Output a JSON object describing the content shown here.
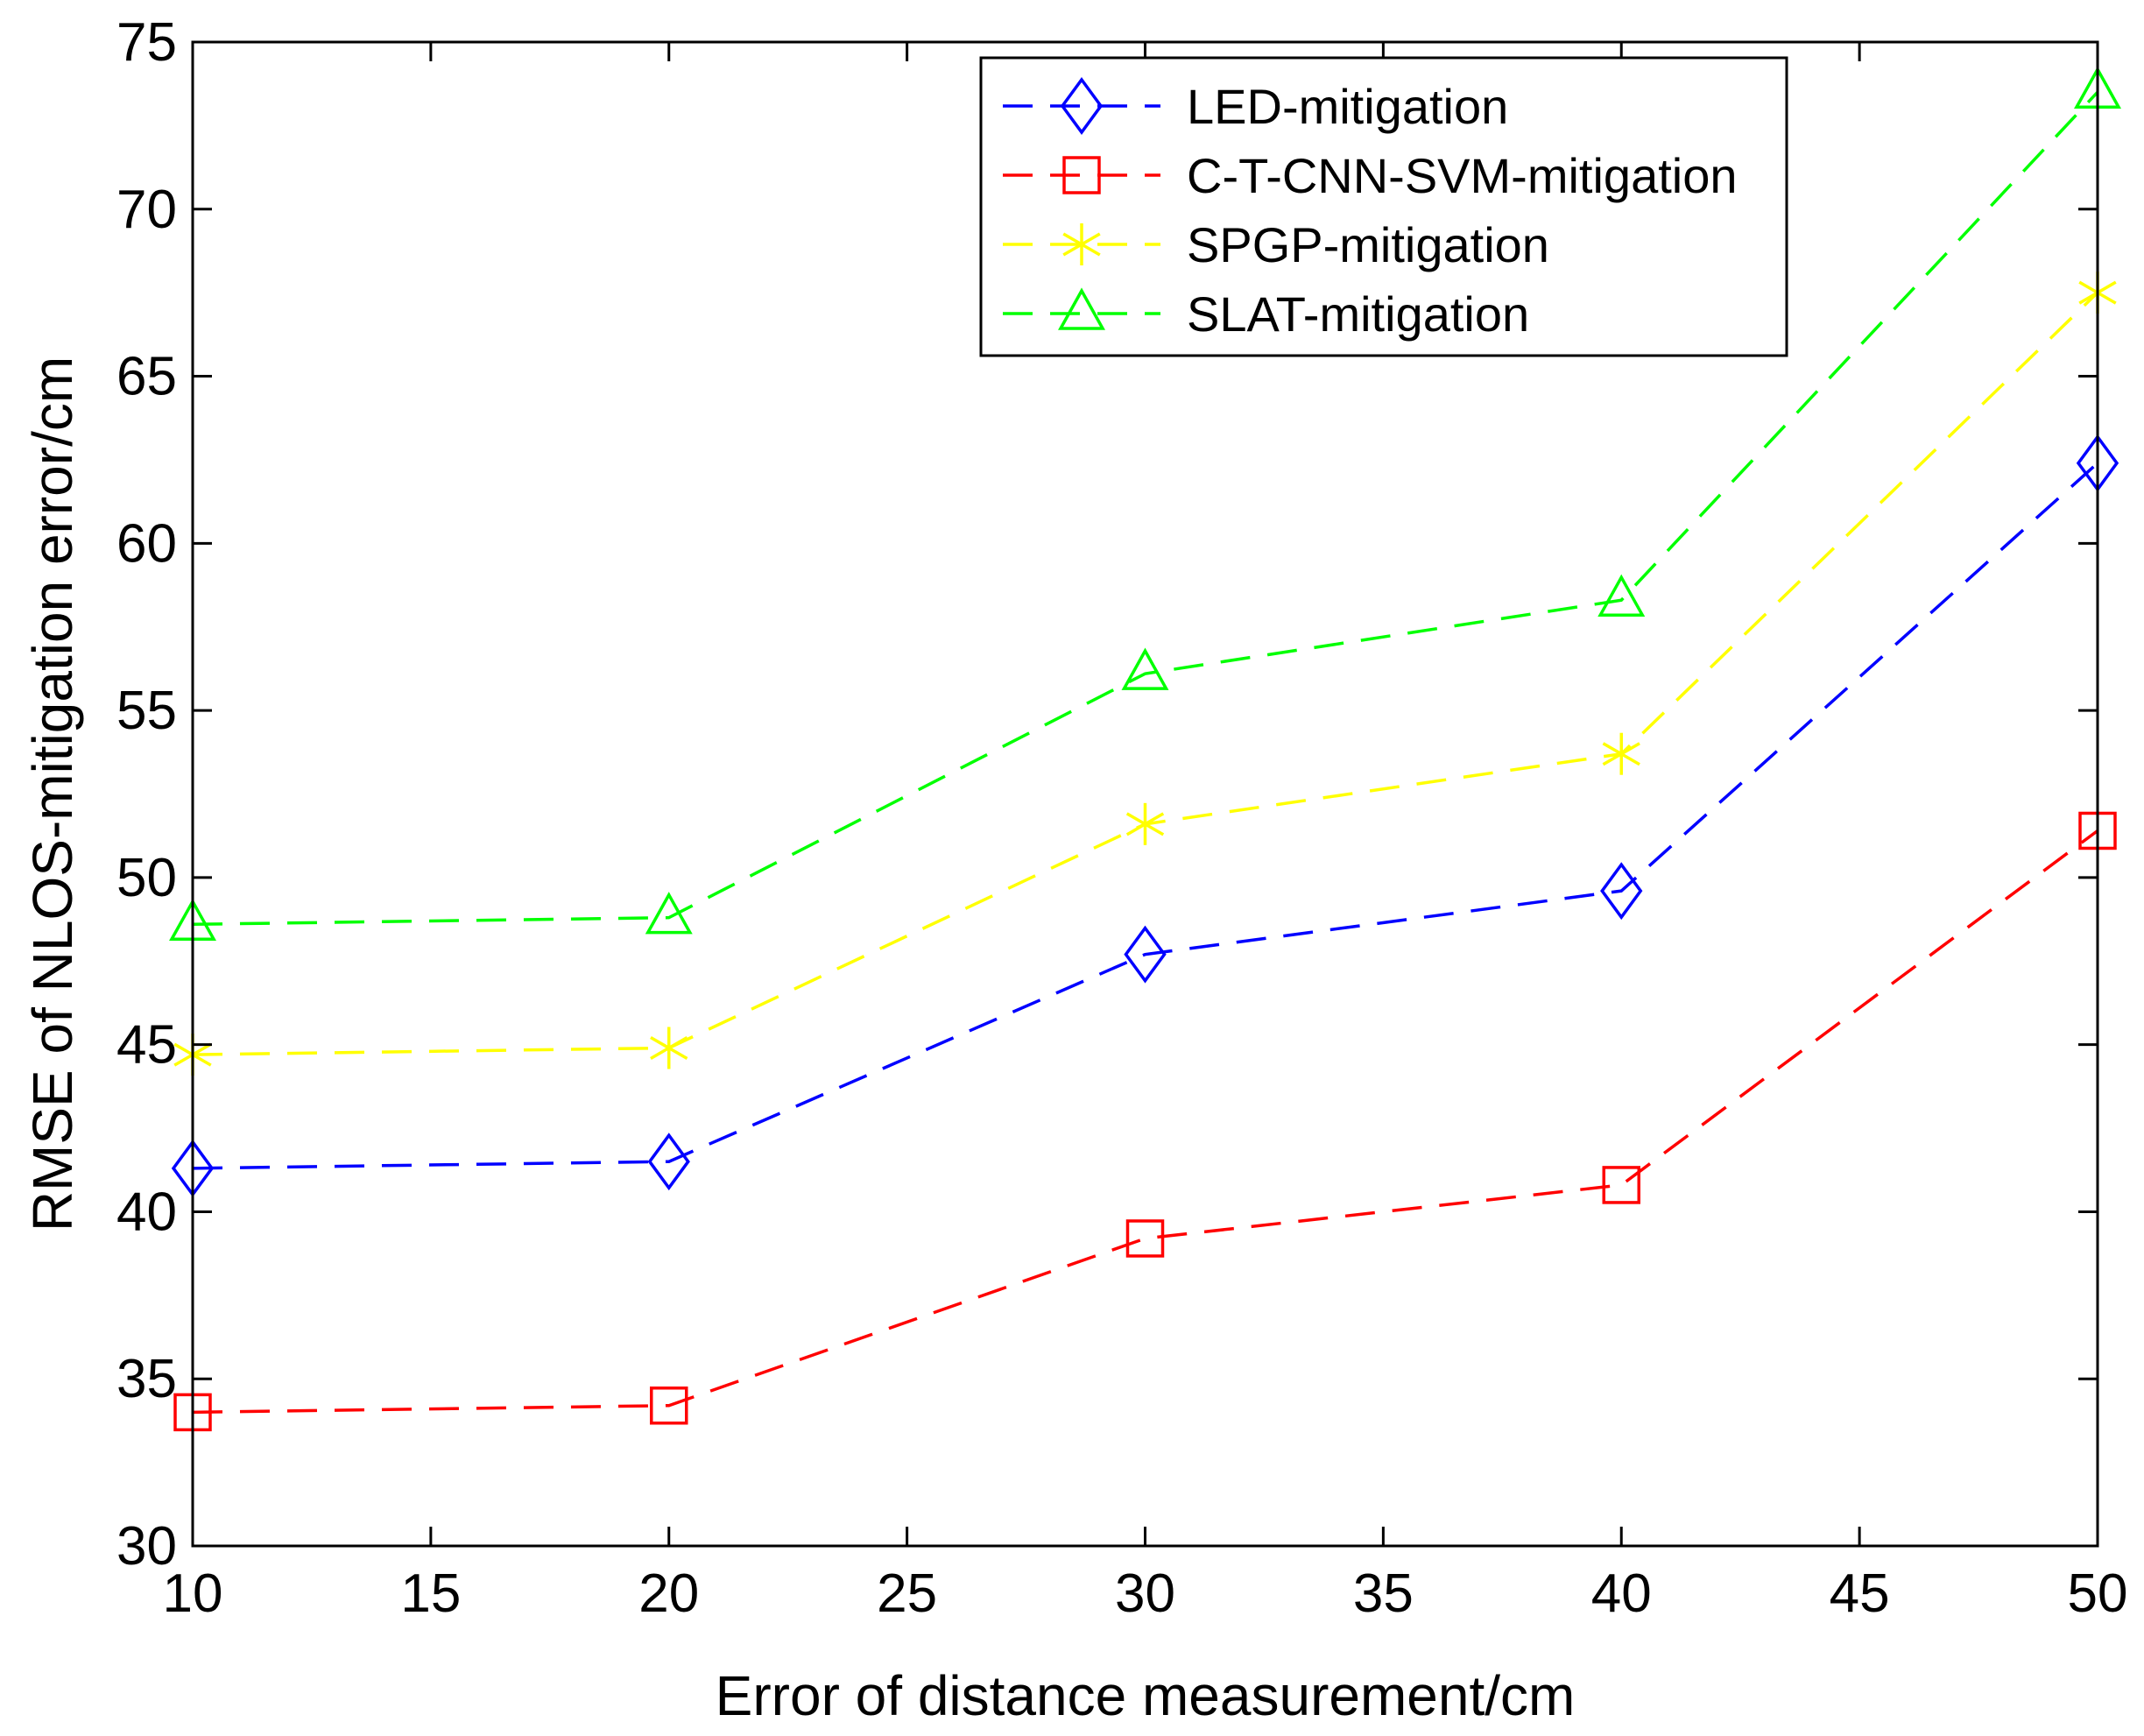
{
  "chart_data": {
    "type": "line",
    "title": "",
    "xlabel": "Error of distance measurement/cm",
    "ylabel": "RMSE of NLOS-mitigation error/cm",
    "xlim": [
      10,
      50
    ],
    "ylim": [
      30,
      75
    ],
    "xticks": [
      10,
      15,
      20,
      25,
      30,
      35,
      40,
      45,
      50
    ],
    "yticks": [
      30,
      35,
      40,
      45,
      50,
      55,
      60,
      65,
      70,
      75
    ],
    "grid": false,
    "legend_position": "top-right",
    "x": [
      10,
      20,
      30,
      40,
      50
    ],
    "series": [
      {
        "name": "LED-mitigation",
        "color": "#0000ff",
        "marker": "diamond",
        "line_style": "dashed",
        "values": [
          41.3,
          41.5,
          47.7,
          49.6,
          62.4
        ]
      },
      {
        "name": "C-T-CNN-SVM-mitigation",
        "color": "#ff0000",
        "marker": "square",
        "line_style": "dashed",
        "values": [
          34.0,
          34.2,
          39.2,
          40.8,
          51.4
        ]
      },
      {
        "name": "SPGP-mitigation",
        "color": "#ffff00",
        "marker": "asterisk",
        "line_style": "dashed",
        "values": [
          44.7,
          44.9,
          51.6,
          53.7,
          67.5
        ]
      },
      {
        "name": "SLAT-mitigation",
        "color": "#00ff00",
        "marker": "triangle",
        "line_style": "dashed",
        "values": [
          48.6,
          48.8,
          56.1,
          58.3,
          73.5
        ]
      }
    ]
  }
}
